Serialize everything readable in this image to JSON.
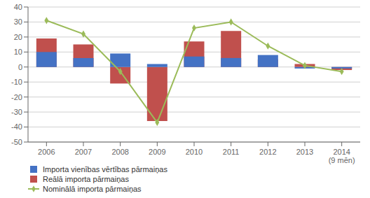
{
  "chart_data": {
    "type": "bar",
    "categories": [
      "2006",
      "2007",
      "2008",
      "2009",
      "2010",
      "2011",
      "2012",
      "2013",
      "2014\n(9 mēn)"
    ],
    "series": [
      {
        "name": "Importa vienības vērtības pārmaiņas",
        "type": "bar",
        "color": "#4472C4",
        "values": [
          10,
          6,
          9,
          2,
          7,
          6,
          8,
          -1,
          -1
        ]
      },
      {
        "name": "Reālā importa pārmaiņas",
        "type": "bar",
        "color": "#C0504D",
        "values": [
          19,
          15,
          -11,
          -36,
          17,
          24,
          5,
          2,
          -2
        ]
      },
      {
        "name": "Nominālā importa pārmaiņas",
        "type": "line",
        "color": "#9BBB59",
        "marker": "diamond",
        "values": [
          31,
          22,
          -3,
          -37,
          26,
          30,
          14,
          1,
          -3
        ]
      }
    ],
    "ylim": [
      -50,
      40
    ],
    "yticks": [
      -50,
      -40,
      -30,
      -20,
      -10,
      0,
      10,
      20,
      30,
      40
    ],
    "grid": true,
    "legend": "bottom"
  }
}
